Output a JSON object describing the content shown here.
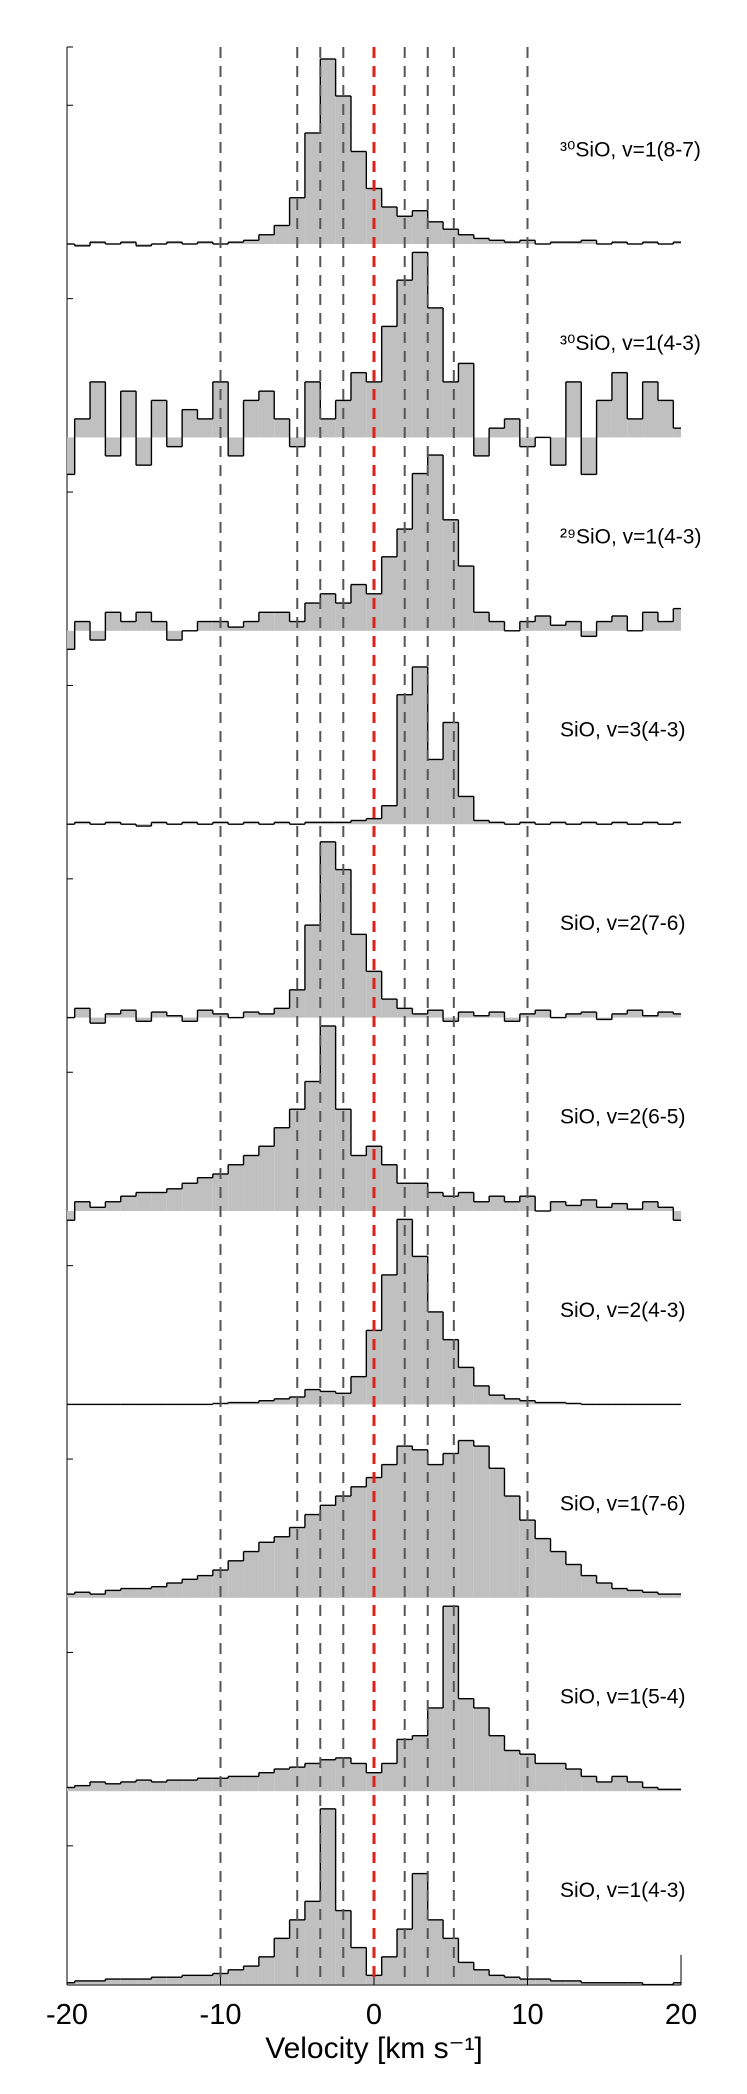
{
  "chart_data": {
    "type": "stacked-spectra",
    "xlabel": "Velocity [km s⁻¹]",
    "xlim": [
      -20,
      20
    ],
    "xticks": [
      -20,
      -10,
      0,
      10,
      20
    ],
    "vlines": [
      -10,
      -5,
      -3.5,
      -2,
      2,
      3.5,
      5.2,
      10
    ],
    "vline_color": "#555555",
    "ref_line": 0,
    "ref_color": "#e0201b",
    "fill_color": "#c0c0c0",
    "x": [
      -20,
      -19,
      -18,
      -17,
      -16,
      -15,
      -14,
      -13,
      -12,
      -11,
      -10,
      -9,
      -8,
      -7,
      -6,
      -5,
      -4,
      -3,
      -2,
      -1,
      0,
      1,
      2,
      3,
      4,
      5,
      6,
      7,
      8,
      9,
      10,
      11,
      12,
      13,
      14,
      15,
      16,
      17,
      18,
      19,
      20
    ],
    "series": [
      {
        "name": "³⁰SiO, v=1(8-7)",
        "values": [
          0.0,
          -0.01,
          0.01,
          0,
          0.01,
          -0.01,
          0,
          0.01,
          0,
          0.01,
          0,
          0.01,
          0.02,
          0.05,
          0.1,
          0.25,
          0.6,
          1.0,
          0.8,
          0.5,
          0.3,
          0.2,
          0.15,
          0.18,
          0.12,
          0.08,
          0.05,
          0.03,
          0.02,
          0.01,
          0.02,
          0.0,
          0.01,
          0.01,
          0.02,
          0,
          0.01,
          0,
          0.01,
          0,
          0.01
        ]
      },
      {
        "name": "³⁰SiO, v=1(4-3)",
        "values": [
          -0.2,
          0.1,
          0.3,
          -0.1,
          0.25,
          -0.15,
          0.2,
          -0.05,
          0.15,
          0.1,
          0.3,
          -0.1,
          0.2,
          0.25,
          0.1,
          -0.05,
          0.3,
          0.1,
          0.2,
          0.35,
          0.3,
          0.6,
          0.85,
          1.0,
          0.7,
          0.3,
          0.4,
          -0.1,
          0.05,
          0.1,
          -0.05,
          0.0,
          -0.15,
          0.3,
          -0.2,
          0.2,
          0.35,
          0.1,
          0.3,
          0.2,
          0.05
        ]
      },
      {
        "name": "²⁹SiO, v=1(4-3)",
        "values": [
          -0.1,
          0.05,
          -0.05,
          0.1,
          0.05,
          0.1,
          0.05,
          -0.05,
          0,
          0.05,
          0.05,
          0.02,
          0.05,
          0.1,
          0.1,
          0.05,
          0.15,
          0.2,
          0.15,
          0.25,
          0.2,
          0.4,
          0.55,
          0.85,
          0.95,
          0.6,
          0.35,
          0.1,
          0.05,
          0,
          0.05,
          0.08,
          0.03,
          0.05,
          -0.03,
          0.05,
          0.08,
          0,
          0.1,
          0.05,
          0.12
        ]
      },
      {
        "name": "SiO, v=3(4-3)",
        "values": [
          0,
          0.01,
          0,
          0.01,
          0,
          -0.01,
          0.01,
          0,
          0.01,
          0,
          0.01,
          0,
          0.01,
          0,
          0.01,
          0,
          0.01,
          0.01,
          0.01,
          0.02,
          0.03,
          0.1,
          0.7,
          0.85,
          0.35,
          0.55,
          0.15,
          0.02,
          0.01,
          0,
          0.01,
          0,
          0.01,
          0,
          0.01,
          0,
          0.01,
          0,
          0.01,
          0,
          0.01
        ]
      },
      {
        "name": "SiO, v=2(7-6)",
        "values": [
          0,
          0.05,
          -0.03,
          0.02,
          0.04,
          -0.02,
          0.03,
          0.01,
          -0.02,
          0.04,
          0.02,
          0,
          0.03,
          0.02,
          0.05,
          0.15,
          0.5,
          0.95,
          0.8,
          0.45,
          0.25,
          0.1,
          0.05,
          0.02,
          0.04,
          -0.02,
          0.03,
          0.01,
          0.03,
          -0.02,
          0.02,
          0.04,
          0,
          0.02,
          0.03,
          -0.01,
          0.02,
          0.04,
          0.01,
          0.03,
          0.02
        ]
      },
      {
        "name": "SiO, v=2(6-5)",
        "values": [
          -0.05,
          0.05,
          0.02,
          0.05,
          0.08,
          0.1,
          0.1,
          0.12,
          0.15,
          0.18,
          0.2,
          0.25,
          0.3,
          0.35,
          0.45,
          0.55,
          0.7,
          1.0,
          0.55,
          0.3,
          0.35,
          0.25,
          0.15,
          0.15,
          0.1,
          0.08,
          0.1,
          0.05,
          0.08,
          0.05,
          0.08,
          0,
          0.05,
          0.03,
          0.06,
          0.02,
          0.04,
          0.01,
          0.05,
          0.02,
          -0.05
        ]
      },
      {
        "name": "SiO, v=2(4-3)",
        "values": [
          0,
          0,
          0,
          0,
          0,
          0,
          0,
          0,
          0,
          0,
          0.005,
          0.01,
          0.01,
          0.02,
          0.03,
          0.04,
          0.08,
          0.07,
          0.06,
          0.15,
          0.4,
          0.7,
          1.0,
          0.8,
          0.5,
          0.35,
          0.2,
          0.1,
          0.05,
          0.03,
          0.02,
          0.01,
          0.01,
          0.005,
          0,
          0,
          0,
          0,
          0,
          0,
          0
        ]
      },
      {
        "name": "SiO, v=1(7-6)",
        "values": [
          0.02,
          0.03,
          0.02,
          0.04,
          0.05,
          0.05,
          0.06,
          0.08,
          0.1,
          0.12,
          0.15,
          0.2,
          0.25,
          0.3,
          0.33,
          0.38,
          0.45,
          0.5,
          0.55,
          0.6,
          0.65,
          0.72,
          0.82,
          0.8,
          0.72,
          0.78,
          0.85,
          0.82,
          0.7,
          0.55,
          0.42,
          0.32,
          0.25,
          0.18,
          0.12,
          0.08,
          0.05,
          0.04,
          0.03,
          0.02,
          0.02
        ]
      },
      {
        "name": "SiO, v=1(5-4)",
        "values": [
          0.02,
          0.03,
          0.05,
          0.04,
          0.05,
          0.06,
          0.05,
          0.06,
          0.06,
          0.07,
          0.07,
          0.08,
          0.08,
          0.1,
          0.12,
          0.13,
          0.15,
          0.17,
          0.18,
          0.15,
          0.1,
          0.15,
          0.28,
          0.3,
          0.45,
          1.0,
          0.5,
          0.45,
          0.3,
          0.22,
          0.2,
          0.15,
          0.15,
          0.12,
          0.08,
          0.05,
          0.08,
          0.05,
          0.02,
          0.01,
          0.01
        ]
      },
      {
        "name": "SiO, v=1(4-3)",
        "values": [
          0.01,
          0.02,
          0.02,
          0.03,
          0.03,
          0.03,
          0.04,
          0.04,
          0.05,
          0.05,
          0.06,
          0.08,
          0.1,
          0.15,
          0.25,
          0.35,
          0.45,
          0.95,
          0.4,
          0.2,
          0.05,
          0.15,
          0.3,
          0.6,
          0.35,
          0.25,
          0.12,
          0.08,
          0.05,
          0.04,
          0.03,
          0.03,
          0.02,
          0.02,
          0.01,
          0.01,
          0.01,
          0.01,
          0,
          0,
          0.01
        ]
      }
    ]
  }
}
